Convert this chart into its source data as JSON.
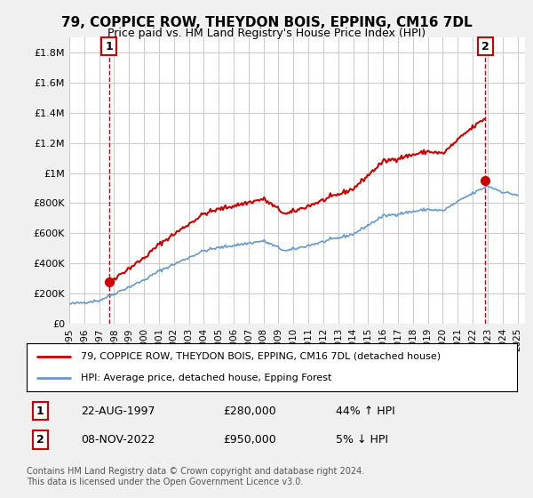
{
  "title": "79, COPPICE ROW, THEYDON BOIS, EPPING, CM16 7DL",
  "subtitle": "Price paid vs. HM Land Registry's House Price Index (HPI)",
  "ylabel_ticks": [
    "£0",
    "£200K",
    "£400K",
    "£600K",
    "£800K",
    "£1M",
    "£1.2M",
    "£1.4M",
    "£1.6M",
    "£1.8M"
  ],
  "ytick_values": [
    0,
    200000,
    400000,
    600000,
    800000,
    1000000,
    1200000,
    1400000,
    1600000,
    1800000
  ],
  "ylim": [
    0,
    1900000
  ],
  "xlim_start": 1995.0,
  "xlim_end": 2025.5,
  "sale1_year": 1997.65,
  "sale1_price": 280000,
  "sale2_year": 2022.85,
  "sale2_price": 950000,
  "annotation1_label": "1",
  "annotation1_date": "22-AUG-1997",
  "annotation1_price": "£280,000",
  "annotation1_hpi": "44% ↑ HPI",
  "annotation2_label": "2",
  "annotation2_date": "08-NOV-2022",
  "annotation2_price": "£950,000",
  "annotation2_hpi": "5% ↓ HPI",
  "legend_line1": "79, COPPICE ROW, THEYDON BOIS, EPPING, CM16 7DL (detached house)",
  "legend_line2": "HPI: Average price, detached house, Epping Forest",
  "footer": "Contains HM Land Registry data © Crown copyright and database right 2024.\nThis data is licensed under the Open Government Licence v3.0.",
  "line_color_red": "#cc0000",
  "line_color_blue": "#6699cc",
  "background_color": "#f0f0f0",
  "plot_bg_color": "#ffffff",
  "grid_color": "#cccccc",
  "dashed_line_color": "#cc0000",
  "xtick_years": [
    1995,
    1996,
    1997,
    1998,
    1999,
    2000,
    2001,
    2002,
    2003,
    2004,
    2005,
    2006,
    2007,
    2008,
    2009,
    2010,
    2011,
    2012,
    2013,
    2014,
    2015,
    2016,
    2017,
    2018,
    2019,
    2020,
    2021,
    2022,
    2023,
    2024,
    2025
  ]
}
